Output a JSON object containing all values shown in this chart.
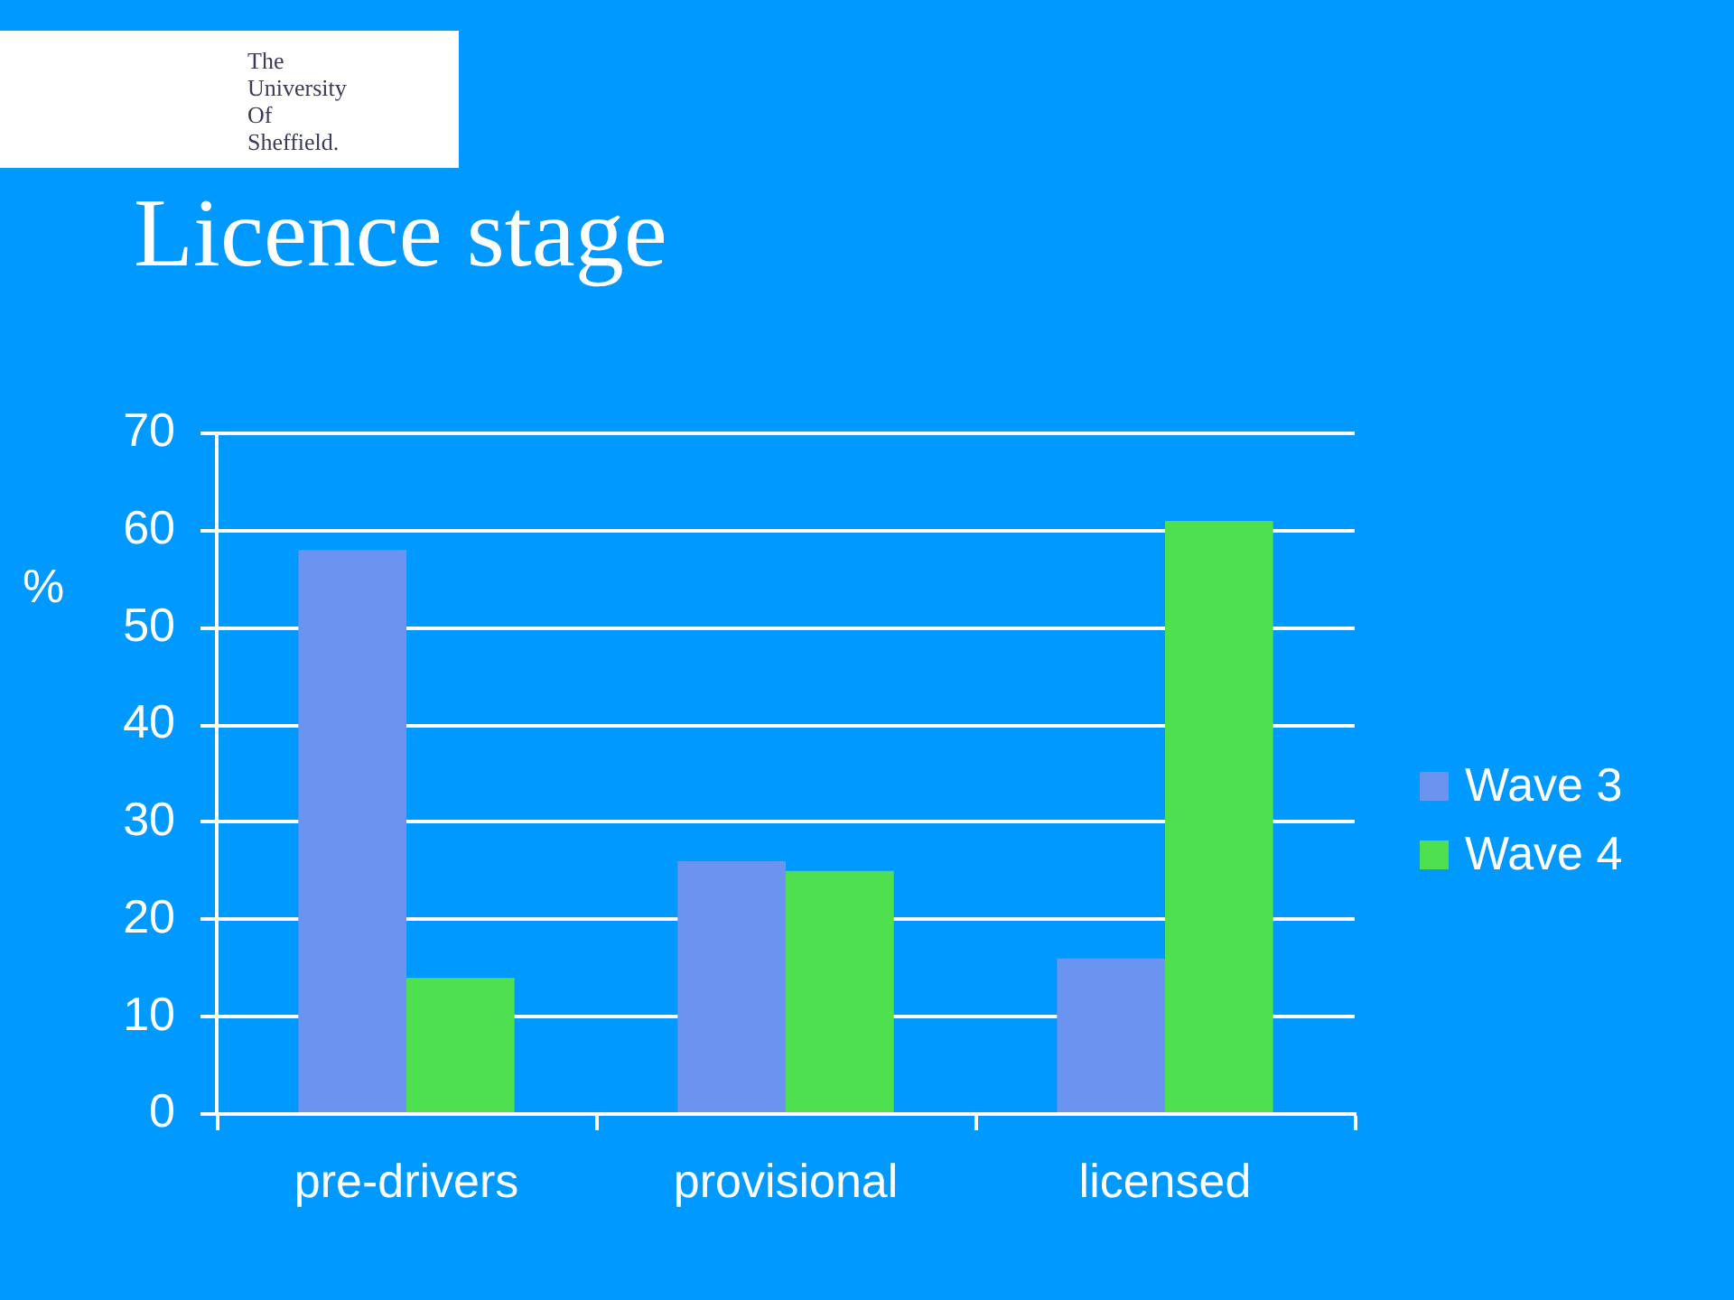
{
  "chart_data": {
    "type": "bar",
    "title": "Licence stage",
    "ylabel": "%",
    "categories": [
      "pre-drivers",
      "provisional",
      "licensed"
    ],
    "series": [
      {
        "name": "Wave 3",
        "color": "#6a94f0",
        "values": [
          58,
          26,
          16
        ]
      },
      {
        "name": "Wave 4",
        "color": "#4fe04f",
        "values": [
          14,
          25,
          61
        ]
      }
    ],
    "ylim": [
      0,
      70
    ],
    "yticks": [
      0,
      10,
      20,
      30,
      40,
      50,
      60,
      70
    ],
    "grid": "y",
    "legend": "right",
    "annotations": [
      "The University Of Sheffield."
    ]
  }
}
